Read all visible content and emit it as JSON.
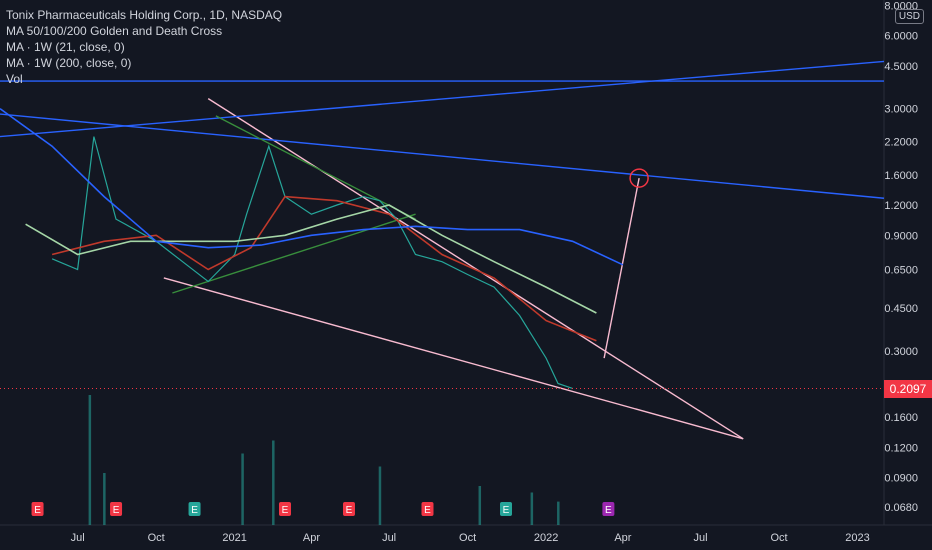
{
  "chart_data": {
    "type": "line",
    "title": "Tonix Pharmaceuticals Holding Corp., 1D, NASDAQ",
    "indicators": [
      "MA 50/100/200 Golden and Death Cross",
      "MA · 1W (21, close, 0)",
      "MA · 1W (200, close, 0)",
      "Vol"
    ],
    "x_tick_labels": [
      "Jul",
      "Oct",
      "2021",
      "Apr",
      "Jul",
      "Oct",
      "2022",
      "Apr",
      "Jul",
      "Oct",
      "2023"
    ],
    "y_tick_labels": [
      "8.0000",
      "6.0000",
      "4.5000",
      "3.0000",
      "2.2000",
      "1.6000",
      "1.2000",
      "0.9000",
      "0.6500",
      "0.4500",
      "0.3000",
      "0.2097",
      "0.1600",
      "0.1200",
      "0.0900",
      "0.0680"
    ],
    "y_scale": "log",
    "currency": "USD",
    "last_price": "0.2097",
    "last_price_color": "#f23645",
    "series": [
      {
        "name": "price",
        "color": "#26a69a",
        "x": [
          "2020-06-01",
          "2020-07-01",
          "2020-07-20",
          "2020-08-15",
          "2020-10-01",
          "2020-11-01",
          "2020-12-01",
          "2021-01-01",
          "2021-01-15",
          "2021-02-10",
          "2021-03-01",
          "2021-04-01",
          "2021-05-01",
          "2021-06-01",
          "2021-06-20",
          "2021-07-10",
          "2021-08-01",
          "2021-09-01",
          "2021-10-01",
          "2021-11-01",
          "2021-12-01",
          "2022-01-01",
          "2022-01-15",
          "2022-02-01"
        ],
        "y": [
          0.72,
          0.65,
          2.3,
          1.05,
          0.85,
          0.7,
          0.58,
          0.75,
          1.1,
          2.1,
          1.3,
          1.1,
          1.2,
          1.3,
          1.25,
          1.05,
          0.75,
          0.7,
          0.62,
          0.55,
          0.42,
          0.28,
          0.22,
          0.21
        ]
      },
      {
        "name": "MA 50",
        "color": "#c0392b",
        "x": [
          "2020-06-01",
          "2020-08-01",
          "2020-10-01",
          "2020-12-01",
          "2021-01-20",
          "2021-03-01",
          "2021-05-01",
          "2021-07-01",
          "2021-09-01",
          "2021-11-01",
          "2022-01-01",
          "2022-03-01"
        ],
        "y": [
          0.75,
          0.85,
          0.9,
          0.65,
          0.8,
          1.3,
          1.25,
          1.1,
          0.75,
          0.6,
          0.4,
          0.33
        ]
      },
      {
        "name": "MA 100",
        "color": "#a5d6a7",
        "x": [
          "2020-05-01",
          "2020-07-01",
          "2020-09-01",
          "2020-11-01",
          "2021-01-01",
          "2021-03-01",
          "2021-05-01",
          "2021-07-01",
          "2021-09-01",
          "2021-11-01",
          "2022-01-01",
          "2022-03-01"
        ],
        "y": [
          1.0,
          0.75,
          0.85,
          0.85,
          0.85,
          0.9,
          1.05,
          1.2,
          0.9,
          0.7,
          0.55,
          0.43
        ]
      },
      {
        "name": "MA 200",
        "color": "#2962ff",
        "x": [
          "2020-04-01",
          "2020-06-01",
          "2020-08-01",
          "2020-10-01",
          "2020-12-01",
          "2021-02-01",
          "2021-04-01",
          "2021-06-01",
          "2021-08-01",
          "2021-10-01",
          "2021-12-01",
          "2022-02-01",
          "2022-04-01"
        ],
        "y": [
          3.0,
          2.1,
          1.3,
          0.85,
          0.8,
          0.82,
          0.9,
          0.95,
          0.98,
          0.95,
          0.95,
          0.85,
          0.68
        ]
      }
    ],
    "trendlines": [
      {
        "color": "#f8bbd0",
        "x1": "2020-12-01",
        "y1": 3.3,
        "x2": "2022-08-20",
        "y2": 0.13
      },
      {
        "color": "#f8bbd0",
        "x1": "2020-10-10",
        "y1": 0.6,
        "x2": "2022-08-20",
        "y2": 0.13
      },
      {
        "color": "#f8bbd0",
        "x1": "2022-03-10",
        "y1": 0.28,
        "x2": "2022-04-20",
        "y2": 1.55
      },
      {
        "color": "#2962ff",
        "x1": "2020-04-01",
        "y1": 2.85,
        "x2": "2023-02-01",
        "y2": 1.28
      },
      {
        "color": "#2962ff",
        "x1": "2020-04-01",
        "y1": 2.3,
        "x2": "2023-02-01",
        "y2": 4.7
      },
      {
        "color": "#2962ff",
        "x1": "2020-04-01",
        "y1": 3.9,
        "x2": "2023-02-01",
        "y2": 3.9
      },
      {
        "color": "#388e3c",
        "x1": "2020-10-20",
        "y1": 0.52,
        "x2": "2021-08-01",
        "y2": 1.1
      },
      {
        "color": "#388e3c",
        "x1": "2020-12-10",
        "y1": 2.8,
        "x2": "2021-08-01",
        "y2": 1.05
      }
    ],
    "target_circle": {
      "x": "2022-04-20",
      "y": 1.55,
      "color": "#f23645"
    },
    "volume": {
      "x": [
        "2020-07-15",
        "2020-08-01",
        "2021-01-10",
        "2021-02-15",
        "2021-06-20",
        "2021-10-15",
        "2021-12-15",
        "2022-01-15"
      ],
      "values": [
        100,
        40,
        55,
        65,
        45,
        30,
        25,
        18
      ]
    },
    "event_markers": {
      "label": "E",
      "dates": [
        "2020-05-15",
        "2020-08-15",
        "2020-11-15",
        "2021-03-01",
        "2021-05-15",
        "2021-08-15",
        "2021-11-15",
        "2022-03-15"
      ],
      "colors": [
        "#f23645",
        "#f23645",
        "#26a69a",
        "#f23645",
        "#f23645",
        "#f23645",
        "#26a69a",
        "#9c27b0"
      ]
    }
  }
}
